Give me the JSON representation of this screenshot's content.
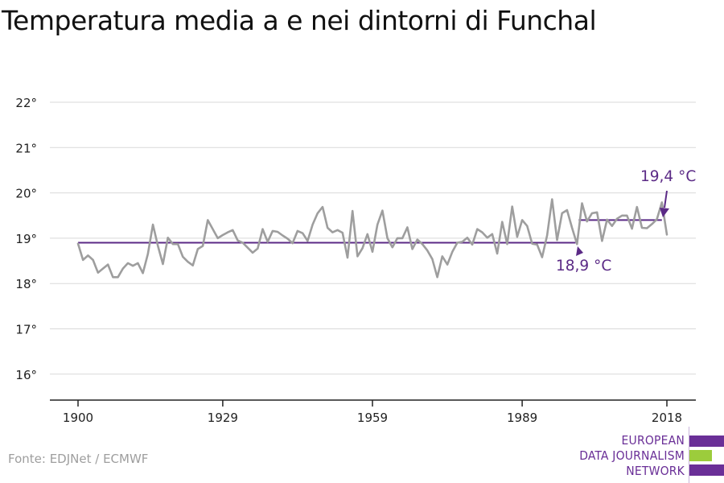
{
  "title": "Temperatura media a e nei dintorni di Funchal",
  "source": "Fonte: EDJNet / ECMWF",
  "logo": {
    "lines": [
      "EUROPEAN",
      "DATA JOURNALISM",
      "NETWORK"
    ],
    "colors": {
      "purple": "#6a2f97",
      "green": "#9ccc3c"
    }
  },
  "chart_data": {
    "type": "line",
    "title": "Temperatura media a e nei dintorni di Funchal",
    "xlabel": "",
    "ylabel": "",
    "xlim": [
      1900,
      2018
    ],
    "ylim": [
      15.5,
      22.2
    ],
    "x_ticks": [
      1900,
      1929,
      1959,
      1989,
      2018
    ],
    "y_ticks": [
      16,
      17,
      18,
      19,
      20,
      21,
      22
    ],
    "y_tick_labels": [
      "16°",
      "17°",
      "18°",
      "19°",
      "20°",
      "21°",
      "22°"
    ],
    "grid": true,
    "colors": {
      "series": "#9e9e9e",
      "average": "#5b2a86",
      "grid": "#d9d9d9",
      "axis": "#222222"
    },
    "series": [
      {
        "values": [
          {
            "x": 1900,
            "y": 18.88
          },
          {
            "x": 1901,
            "y": 18.52
          },
          {
            "x": 1902,
            "y": 18.62
          },
          {
            "x": 1903,
            "y": 18.52
          },
          {
            "x": 1904,
            "y": 18.24
          },
          {
            "x": 1905,
            "y": 18.33
          },
          {
            "x": 1906,
            "y": 18.42
          },
          {
            "x": 1907,
            "y": 18.14
          },
          {
            "x": 1908,
            "y": 18.14
          },
          {
            "x": 1909,
            "y": 18.33
          },
          {
            "x": 1910,
            "y": 18.45
          },
          {
            "x": 1911,
            "y": 18.39
          },
          {
            "x": 1912,
            "y": 18.45
          },
          {
            "x": 1913,
            "y": 18.23
          },
          {
            "x": 1914,
            "y": 18.65
          },
          {
            "x": 1915,
            "y": 19.3
          },
          {
            "x": 1916,
            "y": 18.83
          },
          {
            "x": 1917,
            "y": 18.43
          },
          {
            "x": 1918,
            "y": 19.01
          },
          {
            "x": 1919,
            "y": 18.87
          },
          {
            "x": 1920,
            "y": 18.87
          },
          {
            "x": 1921,
            "y": 18.59
          },
          {
            "x": 1922,
            "y": 18.48
          },
          {
            "x": 1923,
            "y": 18.4
          },
          {
            "x": 1924,
            "y": 18.76
          },
          {
            "x": 1925,
            "y": 18.83
          },
          {
            "x": 1926,
            "y": 19.4
          },
          {
            "x": 1927,
            "y": 19.2
          },
          {
            "x": 1928,
            "y": 19.0
          },
          {
            "x": 1929,
            "y": 19.07
          },
          {
            "x": 1930,
            "y": 19.13
          },
          {
            "x": 1931,
            "y": 19.18
          },
          {
            "x": 1932,
            "y": 18.95
          },
          {
            "x": 1933,
            "y": 18.9
          },
          {
            "x": 1934,
            "y": 18.79
          },
          {
            "x": 1935,
            "y": 18.68
          },
          {
            "x": 1936,
            "y": 18.77
          },
          {
            "x": 1937,
            "y": 19.2
          },
          {
            "x": 1938,
            "y": 18.92
          },
          {
            "x": 1939,
            "y": 19.16
          },
          {
            "x": 1940,
            "y": 19.14
          },
          {
            "x": 1941,
            "y": 19.06
          },
          {
            "x": 1942,
            "y": 18.99
          },
          {
            "x": 1943,
            "y": 18.89
          },
          {
            "x": 1944,
            "y": 19.16
          },
          {
            "x": 1945,
            "y": 19.11
          },
          {
            "x": 1946,
            "y": 18.94
          },
          {
            "x": 1947,
            "y": 19.3
          },
          {
            "x": 1948,
            "y": 19.55
          },
          {
            "x": 1949,
            "y": 19.69
          },
          {
            "x": 1950,
            "y": 19.23
          },
          {
            "x": 1951,
            "y": 19.13
          },
          {
            "x": 1952,
            "y": 19.18
          },
          {
            "x": 1953,
            "y": 19.12
          },
          {
            "x": 1954,
            "y": 18.57
          },
          {
            "x": 1955,
            "y": 19.6
          },
          {
            "x": 1956,
            "y": 18.6
          },
          {
            "x": 1957,
            "y": 18.78
          },
          {
            "x": 1958,
            "y": 19.09
          },
          {
            "x": 1959,
            "y": 18.7
          },
          {
            "x": 1960,
            "y": 19.3
          },
          {
            "x": 1961,
            "y": 19.61
          },
          {
            "x": 1962,
            "y": 19.0
          },
          {
            "x": 1963,
            "y": 18.8
          },
          {
            "x": 1964,
            "y": 19.0
          },
          {
            "x": 1965,
            "y": 19.0
          },
          {
            "x": 1966,
            "y": 19.24
          },
          {
            "x": 1967,
            "y": 18.76
          },
          {
            "x": 1968,
            "y": 18.97
          },
          {
            "x": 1969,
            "y": 18.87
          },
          {
            "x": 1970,
            "y": 18.73
          },
          {
            "x": 1971,
            "y": 18.54
          },
          {
            "x": 1972,
            "y": 18.14
          },
          {
            "x": 1973,
            "y": 18.6
          },
          {
            "x": 1974,
            "y": 18.42
          },
          {
            "x": 1975,
            "y": 18.7
          },
          {
            "x": 1976,
            "y": 18.9
          },
          {
            "x": 1977,
            "y": 18.92
          },
          {
            "x": 1978,
            "y": 19.01
          },
          {
            "x": 1979,
            "y": 18.86
          },
          {
            "x": 1980,
            "y": 19.2
          },
          {
            "x": 1981,
            "y": 19.13
          },
          {
            "x": 1982,
            "y": 19.01
          },
          {
            "x": 1983,
            "y": 19.09
          },
          {
            "x": 1984,
            "y": 18.66
          },
          {
            "x": 1985,
            "y": 19.36
          },
          {
            "x": 1986,
            "y": 18.87
          },
          {
            "x": 1987,
            "y": 19.7
          },
          {
            "x": 1988,
            "y": 19.03
          },
          {
            "x": 1989,
            "y": 19.4
          },
          {
            "x": 1990,
            "y": 19.27
          },
          {
            "x": 1991,
            "y": 18.88
          },
          {
            "x": 1992,
            "y": 18.86
          },
          {
            "x": 1993,
            "y": 18.58
          },
          {
            "x": 1994,
            "y": 19.06
          },
          {
            "x": 1995,
            "y": 19.86
          },
          {
            "x": 1996,
            "y": 18.96
          },
          {
            "x": 1997,
            "y": 19.55
          },
          {
            "x": 1998,
            "y": 19.62
          },
          {
            "x": 1999,
            "y": 19.23
          },
          {
            "x": 2000,
            "y": 18.87
          },
          {
            "x": 2001,
            "y": 19.77
          },
          {
            "x": 2002,
            "y": 19.37
          },
          {
            "x": 2003,
            "y": 19.55
          },
          {
            "x": 2004,
            "y": 19.57
          },
          {
            "x": 2005,
            "y": 18.94
          },
          {
            "x": 2006,
            "y": 19.41
          },
          {
            "x": 2007,
            "y": 19.27
          },
          {
            "x": 2008,
            "y": 19.43
          },
          {
            "x": 2009,
            "y": 19.5
          },
          {
            "x": 2010,
            "y": 19.5
          },
          {
            "x": 2011,
            "y": 19.21
          },
          {
            "x": 2012,
            "y": 19.69
          },
          {
            "x": 2013,
            "y": 19.23
          },
          {
            "x": 2014,
            "y": 19.22
          },
          {
            "x": 2015,
            "y": 19.31
          },
          {
            "x": 2016,
            "y": 19.42
          },
          {
            "x": 2017,
            "y": 19.79
          },
          {
            "x": 2018,
            "y": 19.08
          }
        ]
      }
    ],
    "averages": [
      {
        "from": 1900,
        "to": 2000,
        "value": 18.9,
        "label": "18,9 °C"
      },
      {
        "from": 2000,
        "to": 2017,
        "value": 19.4,
        "label": "19,4 °C"
      }
    ]
  }
}
